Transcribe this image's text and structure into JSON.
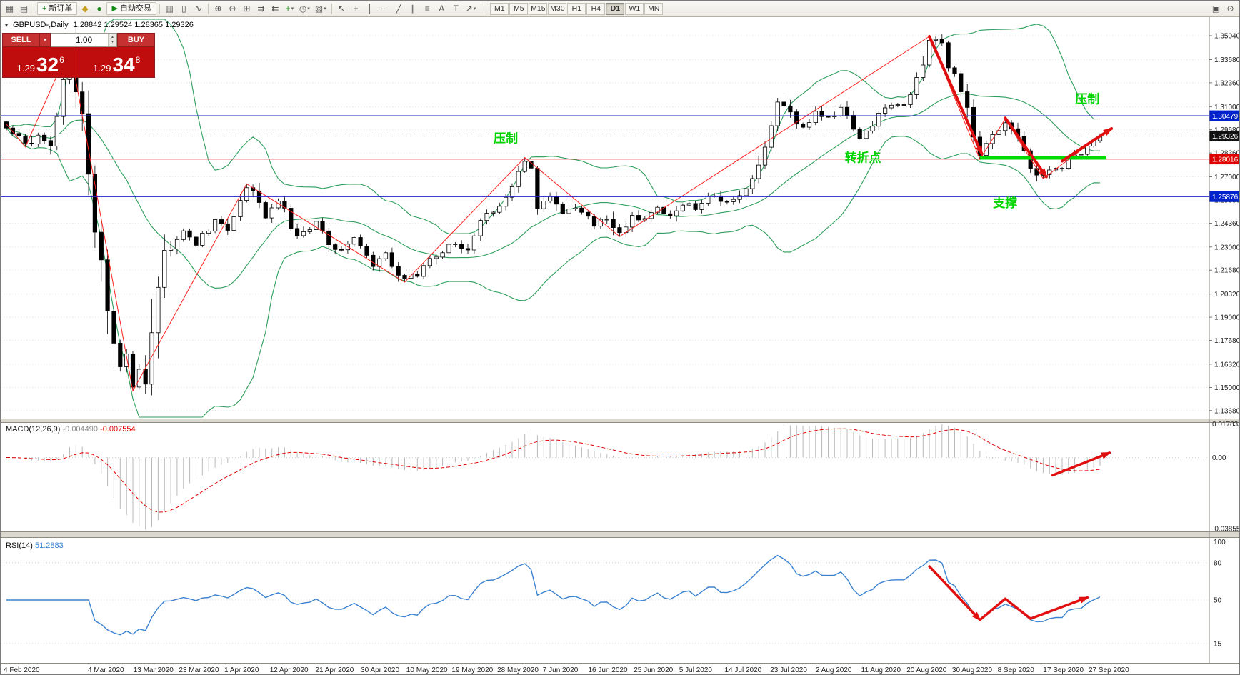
{
  "icons": {
    "new_chart": "▦",
    "profiles": "▤",
    "plus": "+",
    "metaeditor": "◆",
    "experts": "●",
    "play": "▶",
    "bars": "▥",
    "candles": "▯",
    "line": "∿",
    "zoom_in": "⊕",
    "zoom_out": "⊖",
    "tile": "⊞",
    "autoscroll": "⇉",
    "shift": "⇇",
    "indicator_plus": "+",
    "periods": "◷",
    "templates": "▨",
    "caret": "▾",
    "cursor": "↖",
    "crosshair": "+",
    "vline": "│",
    "hline": "─",
    "trendline": "╱",
    "channel": "∥",
    "fibo": "≡",
    "text": "A",
    "label": "T",
    "arrow_tool": "↗",
    "docs": "▣",
    "search": "⊙",
    "spin_up": "▲",
    "spin_down": "▼",
    "header_marker": "▾"
  },
  "toolbar": {
    "new_order_label": "新订单",
    "auto_trading_label": "自动交易",
    "timeframes": [
      "M1",
      "M5",
      "M15",
      "M30",
      "H1",
      "H4",
      "D1",
      "W1",
      "MN"
    ],
    "active_timeframe": "D1"
  },
  "symbol_header": {
    "title": "GBPUSD-,Daily",
    "ohlc": "1.28842 1.29524 1.28365 1.29326"
  },
  "trade_panel": {
    "sell_label": "SELL",
    "buy_label": "BUY",
    "volume": "1.00",
    "sell_price": {
      "big_prefix": "1.29",
      "big": "32",
      "sup": "6"
    },
    "buy_price": {
      "big_prefix": "1.29",
      "big": "34",
      "sup": "8"
    }
  },
  "chart_data": [
    {
      "type": "candlestick",
      "symbol": "GBPUSD-",
      "timeframe": "Daily",
      "ohlc_header": {
        "open": 1.28842,
        "high": 1.29524,
        "low": 1.28365,
        "close": 1.29326
      },
      "last_price": 1.29326,
      "bar_count": 174,
      "candle_up_fill": "#ffffff",
      "candle_down_fill": "#000000",
      "x_labels": [
        "4 Feb 2020",
        "4 Mar 2020",
        "13 Mar 2020",
        "23 Mar 2020",
        "1 Apr 2020",
        "12 Apr 2020",
        "21 Apr 2020",
        "30 Apr 2020",
        "10 May 2020",
        "19 May 2020",
        "28 May 2020",
        "7 Jun 2020",
        "16 Jun 2020",
        "25 Jun 2020",
        "5 Jul 2020",
        "14 Jul 2020",
        "23 Jul 2020",
        "2 Aug 2020",
        "11 Aug 2020",
        "20 Aug 2020",
        "30 Aug 2020",
        "8 Sep 2020",
        "17 Sep 2020",
        "27 Sep 2020"
      ],
      "y_ticks": [
        "1.35040",
        "1.33680",
        "1.32360",
        "1.31000",
        "1.29680",
        "1.28360",
        "1.27000",
        "1.25680",
        "1.24360",
        "1.23000",
        "1.21680",
        "1.20320",
        "1.19000",
        "1.17680",
        "1.16320",
        "1.15000",
        "1.13680"
      ],
      "price_path": [
        [
          0,
          1.2985
        ],
        [
          2,
          1.2935
        ],
        [
          3,
          1.287
        ],
        [
          5,
          1.294
        ],
        [
          7,
          1.29
        ],
        [
          10,
          1.344
        ],
        [
          11,
          1.32
        ],
        [
          12,
          1.298
        ],
        [
          13,
          1.27
        ],
        [
          14,
          1.245
        ],
        [
          15,
          1.225
        ],
        [
          16,
          1.195
        ],
        [
          17,
          1.175
        ],
        [
          18,
          1.16
        ],
        [
          19,
          1.17
        ],
        [
          20,
          1.148
        ],
        [
          21,
          1.162
        ],
        [
          22,
          1.156
        ],
        [
          23,
          1.185
        ],
        [
          24,
          1.21
        ],
        [
          25,
          1.225
        ],
        [
          26,
          1.23
        ],
        [
          28,
          1.238
        ],
        [
          30,
          1.232
        ],
        [
          33,
          1.245
        ],
        [
          35,
          1.24
        ],
        [
          38,
          1.266
        ],
        [
          41,
          1.248
        ],
        [
          43,
          1.256
        ],
        [
          46,
          1.235
        ],
        [
          49,
          1.244
        ],
        [
          52,
          1.228
        ],
        [
          55,
          1.235
        ],
        [
          58,
          1.218
        ],
        [
          60,
          1.226
        ],
        [
          63,
          1.21
        ],
        [
          66,
          1.218
        ],
        [
          68,
          1.225
        ],
        [
          70,
          1.232
        ],
        [
          73,
          1.23
        ],
        [
          75,
          1.244
        ],
        [
          78,
          1.255
        ],
        [
          80,
          1.262
        ],
        [
          82,
          1.281
        ],
        [
          83,
          1.27
        ],
        [
          84,
          1.252
        ],
        [
          86,
          1.26
        ],
        [
          88,
          1.248
        ],
        [
          90,
          1.253
        ],
        [
          93,
          1.242
        ],
        [
          95,
          1.247
        ],
        [
          97,
          1.236
        ],
        [
          99,
          1.248
        ],
        [
          101,
          1.245
        ],
        [
          103,
          1.252
        ],
        [
          105,
          1.247
        ],
        [
          107,
          1.255
        ],
        [
          109,
          1.251
        ],
        [
          111,
          1.26
        ],
        [
          113,
          1.256
        ],
        [
          115,
          1.256
        ],
        [
          117,
          1.262
        ],
        [
          119,
          1.275
        ],
        [
          122,
          1.313
        ],
        [
          124,
          1.305
        ],
        [
          126,
          1.298
        ],
        [
          128,
          1.307
        ],
        [
          130,
          1.303
        ],
        [
          132,
          1.309
        ],
        [
          135,
          1.292
        ],
        [
          138,
          1.305
        ],
        [
          140,
          1.312
        ],
        [
          142,
          1.31
        ],
        [
          144,
          1.326
        ],
        [
          146,
          1.35
        ],
        [
          148,
          1.345
        ],
        [
          149,
          1.335
        ],
        [
          150,
          1.328
        ],
        [
          151,
          1.32
        ],
        [
          152,
          1.312
        ],
        [
          153,
          1.295
        ],
        [
          154,
          1.28
        ],
        [
          155,
          1.288
        ],
        [
          156,
          1.292
        ],
        [
          157,
          1.299
        ],
        [
          158,
          1.303
        ],
        [
          159,
          1.297
        ],
        [
          160,
          1.29
        ],
        [
          161,
          1.284
        ],
        [
          162,
          1.276
        ],
        [
          163,
          1.272
        ],
        [
          164,
          1.269
        ],
        [
          165,
          1.273
        ],
        [
          166,
          1.276
        ],
        [
          167,
          1.274
        ],
        [
          168,
          1.279
        ],
        [
          169,
          1.282
        ],
        [
          170,
          1.284
        ],
        [
          171,
          1.287
        ],
        [
          172,
          1.29
        ],
        [
          173,
          1.29326
        ]
      ],
      "zigzag": [
        [
          0,
          1.3
        ],
        [
          3,
          1.287
        ],
        [
          10,
          1.344
        ],
        [
          20,
          1.148
        ],
        [
          38,
          1.266
        ],
        [
          63,
          1.21
        ],
        [
          82,
          1.281
        ],
        [
          97,
          1.236
        ],
        [
          146,
          1.35
        ],
        [
          154,
          1.28
        ],
        [
          158,
          1.303
        ],
        [
          164,
          1.269
        ],
        [
          173,
          1.2933
        ]
      ],
      "indicators": {
        "bollinger": {
          "period": 20,
          "deviation": 2,
          "color": "#2e9e5b"
        },
        "zigzag_color": "#ff2020"
      },
      "hlines": [
        {
          "name": "resistance-upper",
          "price": 1.30479,
          "label": "1.30479",
          "color": "#2222cc",
          "tag_bg": "#0022cc",
          "style": "solid"
        },
        {
          "name": "pivot",
          "price": 1.28016,
          "label": "1.28016",
          "color": "#e00000",
          "tag_bg": "#e00000",
          "style": "solid"
        },
        {
          "name": "support-lower",
          "price": 1.25876,
          "label": "1.25876",
          "color": "#2222cc",
          "tag_bg": "#0022cc",
          "style": "solid"
        },
        {
          "name": "last-price",
          "price": 1.29326,
          "label": "1.29326",
          "color": "#999999",
          "tag_bg": "#111111",
          "style": "dotted"
        }
      ],
      "annotations": {
        "text_color": "#00d400",
        "arrow_color": "#e01010",
        "texts": [
          {
            "name": "resistance-1",
            "text": "压制",
            "bar": 79,
            "price": 1.2895
          },
          {
            "name": "turning-point",
            "text": "转折点",
            "bar": 135.5,
            "price": 1.2785
          },
          {
            "name": "support",
            "text": "支撑",
            "bar": 158,
            "price": 1.2527
          },
          {
            "name": "resistance-2",
            "text": "压制",
            "bar": 171,
            "price": 1.312
          }
        ],
        "support_line": {
          "from_bar": 154,
          "to_bar": 174,
          "price": 1.2808,
          "color": "#00dc00"
        },
        "arrows": [
          {
            "from_bar": 146,
            "from_price": 1.35,
            "to_bar": 154.3,
            "to_price": 1.283
          },
          {
            "from_bar": 158,
            "from_price": 1.3035,
            "to_bar": 164.5,
            "to_price": 1.27
          },
          {
            "from_bar": 167,
            "from_price": 1.279,
            "to_bar": 174.8,
            "to_price": 1.2975
          }
        ]
      }
    },
    {
      "type": "macd",
      "params": "12,26,9",
      "label": "MACD(12,26,9)",
      "value": "-0.004490",
      "signal_value": "-0.007554",
      "axis": {
        "top_label": "0.017833",
        "zero_label": "0.00",
        "bottom_label": "-0.038559",
        "top": 0.017833,
        "bottom": -0.038559
      },
      "histogram_color": "#b9b9b9",
      "signal_color": "#e00000",
      "arrow": {
        "from_bar": 165.5,
        "v_from": -0.0095,
        "to_bar": 174.5,
        "v_to": 0.0025
      }
    },
    {
      "type": "rsi",
      "period": 14,
      "label": "RSI(14)",
      "value": "51.2883",
      "line_color": "#3b82d0",
      "levels": [
        {
          "value": 100,
          "label": "100"
        },
        {
          "value": 80,
          "label": "80"
        },
        {
          "value": 50,
          "label": "50"
        },
        {
          "value": 15,
          "label": "15"
        }
      ],
      "arrow_path": [
        [
          146,
          77
        ],
        [
          154,
          34
        ],
        [
          158,
          51
        ],
        [
          162,
          35
        ],
        [
          171,
          52
        ]
      ]
    }
  ]
}
